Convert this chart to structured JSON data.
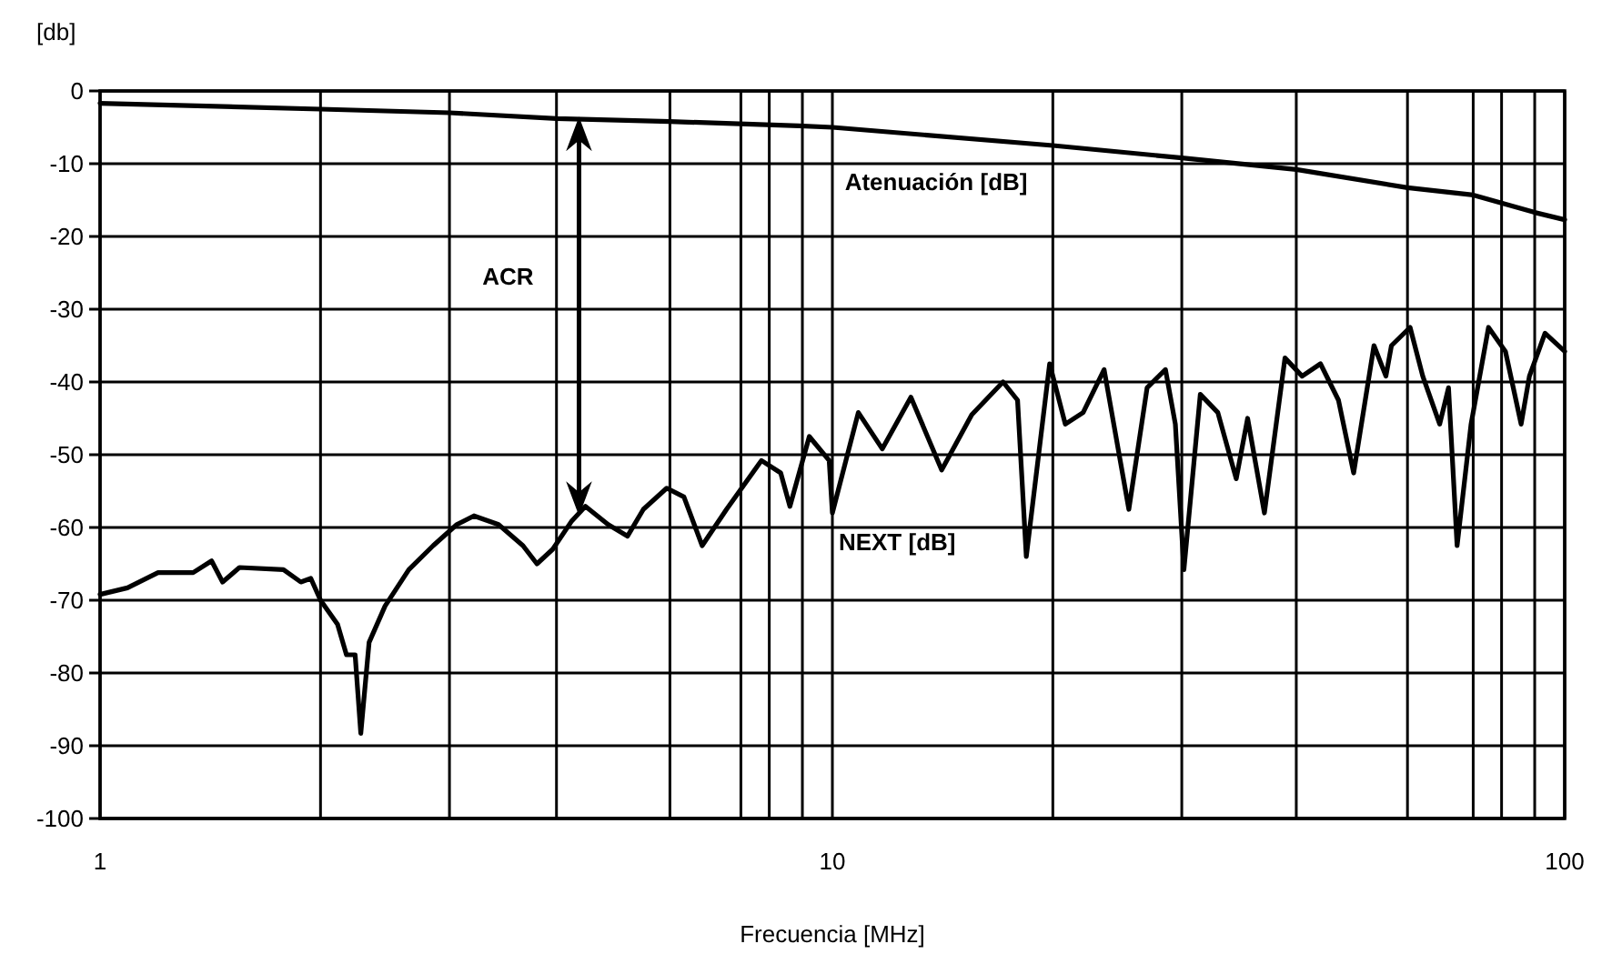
{
  "chart_data": {
    "type": "line",
    "xlabel": "Frecuencia [MHz]",
    "ylabel": "[db]",
    "log": "x",
    "grid": true,
    "marker": "none",
    "line_style": "solid",
    "xlim": [
      1,
      100
    ],
    "ylim": [
      -100,
      0
    ],
    "xticks": [
      1,
      {
        "value": 2,
        "label": null
      },
      {
        "value": 3,
        "label": null
      },
      {
        "value": 4.2,
        "label": null
      },
      {
        "value": 6,
        "label": null
      },
      {
        "value": 7.5,
        "label": null
      },
      {
        "value": 8.2,
        "label": null
      },
      {
        "value": 9.1,
        "label": null
      },
      10,
      {
        "value": 20,
        "label": null
      },
      {
        "value": 30,
        "label": null
      },
      {
        "value": 43,
        "label": null
      },
      {
        "value": 61,
        "label": null
      },
      {
        "value": 75,
        "label": null
      },
      {
        "value": 82,
        "label": null
      },
      {
        "value": 91,
        "label": null
      },
      100
    ],
    "yticks": [
      0,
      -10,
      -20,
      -30,
      -40,
      -50,
      -60,
      -70,
      -80,
      -90,
      -100
    ],
    "series": [
      {
        "name": "Atenuación [dB]",
        "color": "#000000",
        "x": [
          1,
          2,
          3,
          4.2,
          6,
          9,
          10,
          20,
          30,
          43,
          61,
          75,
          91,
          100
        ],
        "values": [
          -1.7,
          -2.5,
          -3,
          -3.8,
          -4.2,
          -4.8,
          -5,
          -7.5,
          -9.2,
          -10.8,
          -13.3,
          -14.3,
          -16.7,
          -17.7
        ]
      },
      {
        "name": "NEXT [dB]",
        "color": "#000000",
        "x": [
          1,
          1.09,
          1.2,
          1.34,
          1.42,
          1.47,
          1.55,
          1.78,
          1.88,
          1.94,
          2,
          2.11,
          2.17,
          2.23,
          2.27,
          2.33,
          2.45,
          2.64,
          2.85,
          3.07,
          3.24,
          3.5,
          3.78,
          3.95,
          4.15,
          4.4,
          4.6,
          4.94,
          5.25,
          5.52,
          5.94,
          6.27,
          6.64,
          7.17,
          8,
          8.5,
          8.75,
          9.3,
          9.9,
          10,
          10.85,
          11.7,
          12.8,
          14.1,
          15.5,
          17.1,
          17.9,
          18.4,
          19.8,
          20.8,
          22,
          23.5,
          25.4,
          26.9,
          28.5,
          29.4,
          30.2,
          31.8,
          33.6,
          35.6,
          36.9,
          38.9,
          41.5,
          43.8,
          46.4,
          49.1,
          51.5,
          54.9,
          57,
          58,
          61.5,
          64,
          67.5,
          69.4,
          71.3,
          74.5,
          78.7,
          83,
          87.2,
          89.5,
          94,
          100
        ],
        "values": [
          -69.2,
          -68.3,
          -66.2,
          -66.2,
          -64.6,
          -67.5,
          -65.5,
          -65.8,
          -67.5,
          -67,
          -70,
          -73.3,
          -77.5,
          -77.5,
          -88.3,
          -75.8,
          -70.8,
          -65.8,
          -62.5,
          -59.6,
          -58.4,
          -59.6,
          -62.5,
          -65,
          -63,
          -59.2,
          -57.1,
          -59.6,
          -61.2,
          -57.5,
          -54.6,
          -55.8,
          -62.5,
          -57.5,
          -50.8,
          -52.5,
          -57.1,
          -47.5,
          -50.8,
          -58,
          -44.2,
          -49.2,
          -42.1,
          -52.1,
          -44.5,
          -40,
          -42.5,
          -64,
          -37.5,
          -45.8,
          -44.2,
          -38.3,
          -57.5,
          -40.8,
          -38.3,
          -45.8,
          -65.8,
          -41.7,
          -44.2,
          -53.3,
          -45,
          -58,
          -36.7,
          -39.2,
          -37.5,
          -42.5,
          -52.5,
          -35,
          -39.2,
          -35,
          -32.5,
          -39.2,
          -45.8,
          -40.8,
          -62.5,
          -45.8,
          -32.5,
          -35.8,
          -45.8,
          -39.2,
          -33.3,
          -35.8
        ]
      }
    ],
    "annotations": [
      "ACR"
    ]
  }
}
